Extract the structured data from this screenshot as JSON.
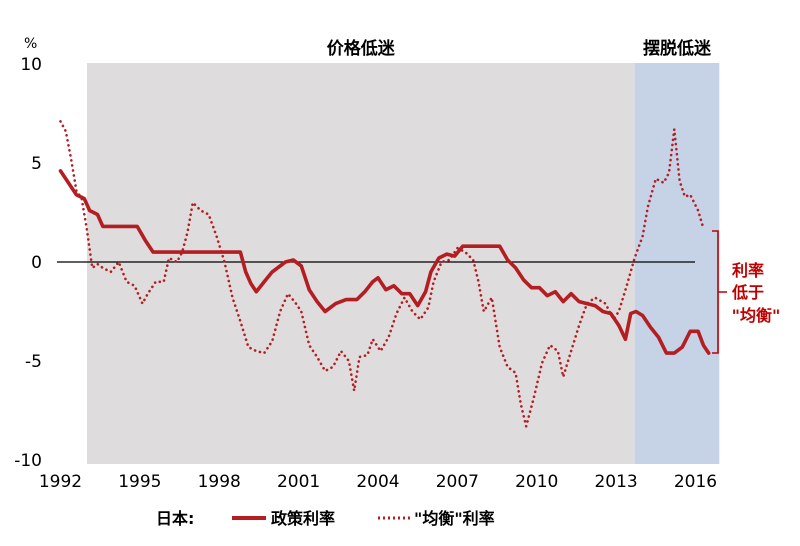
{
  "chart_data": {
    "type": "line",
    "y_unit": "%",
    "ylim": [
      -10,
      10
    ],
    "xlim": [
      1992,
      2017
    ],
    "x_ticks": [
      1992,
      1995,
      1998,
      2001,
      2004,
      2007,
      2010,
      2013,
      2016
    ],
    "y_ticks": [
      10,
      5,
      0,
      -5,
      -10
    ],
    "regions": [
      {
        "label": "价格低迷",
        "x_range": [
          1993.0,
          2013.7
        ],
        "color": "#dedcdc"
      },
      {
        "label": "摆脱低迷",
        "x_range": [
          2013.7,
          2016.9
        ],
        "color": "#c6d2e6"
      }
    ],
    "annotation": {
      "lines": [
        "利率",
        "低于",
        "\"均衡\""
      ],
      "color": "#c00000"
    },
    "legend": {
      "prefix": "日本:",
      "items": [
        "政策利率",
        "\"均衡\"利率"
      ],
      "position": "bottom"
    },
    "series": [
      {
        "name": "政策利率",
        "color": "#b41e23",
        "style": "solid",
        "points": [
          [
            1992.0,
            4.6
          ],
          [
            1992.3,
            4.0
          ],
          [
            1992.6,
            3.4
          ],
          [
            1992.9,
            3.2
          ],
          [
            1993.1,
            2.6
          ],
          [
            1993.4,
            2.4
          ],
          [
            1993.6,
            1.8
          ],
          [
            1994.0,
            1.8
          ],
          [
            1994.5,
            1.8
          ],
          [
            1994.9,
            1.8
          ],
          [
            1995.2,
            1.1
          ],
          [
            1995.5,
            0.5
          ],
          [
            1996.0,
            0.5
          ],
          [
            1996.5,
            0.5
          ],
          [
            1997.0,
            0.5
          ],
          [
            1997.5,
            0.5
          ],
          [
            1998.0,
            0.5
          ],
          [
            1998.5,
            0.5
          ],
          [
            1998.8,
            0.5
          ],
          [
            1999.0,
            -0.5
          ],
          [
            1999.2,
            -1.1
          ],
          [
            1999.4,
            -1.5
          ],
          [
            1999.7,
            -1.0
          ],
          [
            2000.0,
            -0.5
          ],
          [
            2000.3,
            -0.2
          ],
          [
            2000.5,
            0.0
          ],
          [
            2000.8,
            0.1
          ],
          [
            2001.1,
            -0.2
          ],
          [
            2001.4,
            -1.4
          ],
          [
            2001.7,
            -2.0
          ],
          [
            2002.0,
            -2.5
          ],
          [
            2002.4,
            -2.1
          ],
          [
            2002.8,
            -1.9
          ],
          [
            2003.2,
            -1.9
          ],
          [
            2003.5,
            -1.5
          ],
          [
            2003.8,
            -1.0
          ],
          [
            2004.0,
            -0.8
          ],
          [
            2004.3,
            -1.4
          ],
          [
            2004.6,
            -1.2
          ],
          [
            2004.9,
            -1.6
          ],
          [
            2005.2,
            -1.6
          ],
          [
            2005.5,
            -2.2
          ],
          [
            2005.8,
            -1.5
          ],
          [
            2006.0,
            -0.5
          ],
          [
            2006.3,
            0.2
          ],
          [
            2006.6,
            0.4
          ],
          [
            2006.9,
            0.3
          ],
          [
            2007.2,
            0.8
          ],
          [
            2007.6,
            0.8
          ],
          [
            2008.0,
            0.8
          ],
          [
            2008.3,
            0.8
          ],
          [
            2008.6,
            0.8
          ],
          [
            2008.9,
            0.1
          ],
          [
            2009.2,
            -0.3
          ],
          [
            2009.5,
            -0.9
          ],
          [
            2009.8,
            -1.3
          ],
          [
            2010.1,
            -1.3
          ],
          [
            2010.4,
            -1.7
          ],
          [
            2010.7,
            -1.5
          ],
          [
            2011.0,
            -2.0
          ],
          [
            2011.3,
            -1.6
          ],
          [
            2011.6,
            -2.0
          ],
          [
            2011.9,
            -2.1
          ],
          [
            2012.2,
            -2.2
          ],
          [
            2012.5,
            -2.5
          ],
          [
            2012.8,
            -2.6
          ],
          [
            2013.1,
            -3.2
          ],
          [
            2013.35,
            -3.9
          ],
          [
            2013.55,
            -2.6
          ],
          [
            2013.75,
            -2.5
          ],
          [
            2014.0,
            -2.7
          ],
          [
            2014.3,
            -3.3
          ],
          [
            2014.6,
            -3.8
          ],
          [
            2014.9,
            -4.6
          ],
          [
            2015.2,
            -4.6
          ],
          [
            2015.5,
            -4.3
          ],
          [
            2015.8,
            -3.5
          ],
          [
            2016.1,
            -3.5
          ],
          [
            2016.3,
            -4.2
          ],
          [
            2016.5,
            -4.6
          ]
        ]
      },
      {
        "name": "\"均衡\"利率",
        "color": "#b41e23",
        "style": "dotted",
        "points": [
          [
            1992.0,
            7.1
          ],
          [
            1992.2,
            6.6
          ],
          [
            1992.4,
            5.2
          ],
          [
            1992.6,
            3.6
          ],
          [
            1992.8,
            3.2
          ],
          [
            1993.0,
            1.6
          ],
          [
            1993.2,
            -0.3
          ],
          [
            1993.4,
            -0.1
          ],
          [
            1993.6,
            -0.3
          ],
          [
            1993.9,
            -0.5
          ],
          [
            1994.2,
            0.0
          ],
          [
            1994.5,
            -1.0
          ],
          [
            1994.8,
            -1.2
          ],
          [
            1995.1,
            -2.1
          ],
          [
            1995.3,
            -1.6
          ],
          [
            1995.6,
            -1.0
          ],
          [
            1995.9,
            -1.0
          ],
          [
            1996.1,
            0.2
          ],
          [
            1996.4,
            0.0
          ],
          [
            1996.6,
            0.5
          ],
          [
            1996.8,
            1.5
          ],
          [
            1997.0,
            3.0
          ],
          [
            1997.3,
            2.6
          ],
          [
            1997.6,
            2.4
          ],
          [
            1997.9,
            1.3
          ],
          [
            1998.2,
            0.0
          ],
          [
            1998.5,
            -1.8
          ],
          [
            1998.8,
            -3.0
          ],
          [
            1999.1,
            -4.3
          ],
          [
            1999.4,
            -4.5
          ],
          [
            1999.7,
            -4.6
          ],
          [
            2000.0,
            -4.0
          ],
          [
            2000.3,
            -2.5
          ],
          [
            2000.6,
            -1.6
          ],
          [
            2000.9,
            -2.1
          ],
          [
            2001.1,
            -2.5
          ],
          [
            2001.4,
            -4.2
          ],
          [
            2001.7,
            -4.8
          ],
          [
            2002.0,
            -5.5
          ],
          [
            2002.3,
            -5.3
          ],
          [
            2002.6,
            -4.5
          ],
          [
            2002.9,
            -5.0
          ],
          [
            2003.1,
            -6.5
          ],
          [
            2003.3,
            -4.8
          ],
          [
            2003.6,
            -4.7
          ],
          [
            2003.8,
            -3.9
          ],
          [
            2004.1,
            -4.5
          ],
          [
            2004.4,
            -3.8
          ],
          [
            2004.7,
            -2.6
          ],
          [
            2005.0,
            -1.8
          ],
          [
            2005.3,
            -2.5
          ],
          [
            2005.6,
            -2.9
          ],
          [
            2005.9,
            -2.3
          ],
          [
            2006.1,
            -1.0
          ],
          [
            2006.4,
            0.0
          ],
          [
            2006.7,
            0.1
          ],
          [
            2007.0,
            0.7
          ],
          [
            2007.3,
            0.5
          ],
          [
            2007.6,
            0.1
          ],
          [
            2007.8,
            -1.0
          ],
          [
            2008.0,
            -2.5
          ],
          [
            2008.3,
            -1.8
          ],
          [
            2008.6,
            -4.3
          ],
          [
            2008.9,
            -5.3
          ],
          [
            2009.2,
            -5.6
          ],
          [
            2009.4,
            -7.2
          ],
          [
            2009.6,
            -8.3
          ],
          [
            2009.9,
            -6.8
          ],
          [
            2010.2,
            -5.1
          ],
          [
            2010.5,
            -4.2
          ],
          [
            2010.8,
            -4.5
          ],
          [
            2011.0,
            -5.8
          ],
          [
            2011.3,
            -4.5
          ],
          [
            2011.6,
            -3.2
          ],
          [
            2011.9,
            -2.1
          ],
          [
            2012.2,
            -1.8
          ],
          [
            2012.6,
            -2.1
          ],
          [
            2012.9,
            -2.9
          ],
          [
            2013.1,
            -2.5
          ],
          [
            2013.4,
            -1.2
          ],
          [
            2013.7,
            0.2
          ],
          [
            2014.0,
            1.3
          ],
          [
            2014.2,
            2.8
          ],
          [
            2014.5,
            4.2
          ],
          [
            2014.8,
            4.0
          ],
          [
            2015.0,
            4.5
          ],
          [
            2015.2,
            6.7
          ],
          [
            2015.4,
            4.1
          ],
          [
            2015.6,
            3.3
          ],
          [
            2015.8,
            3.4
          ],
          [
            2016.1,
            2.6
          ],
          [
            2016.3,
            1.7
          ]
        ]
      }
    ]
  }
}
